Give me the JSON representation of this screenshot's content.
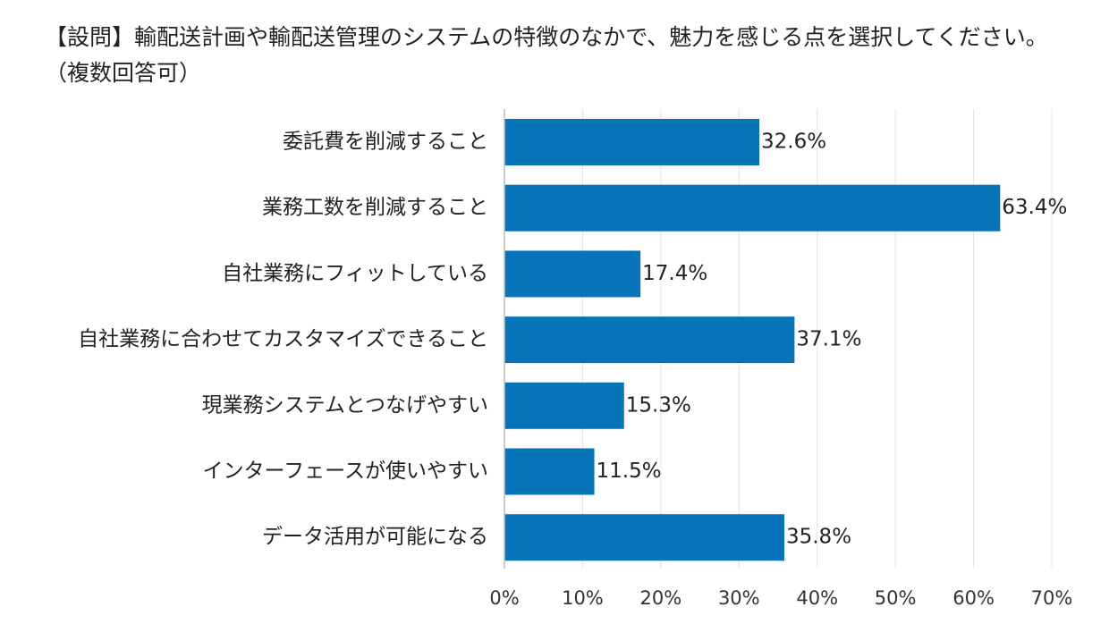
{
  "chart_data": {
    "type": "bar",
    "orientation": "horizontal",
    "title": "【設問】輸配送計画や輸配送管理のシステムの特徴のなかで、魅力を感じる点を選択してください。（複数回答可）",
    "categories": [
      "委託費を削減すること",
      "業務工数を削減すること",
      "自社業務にフィットしている",
      "自社業務に合わせてカスタマイズできること",
      "現業務システムとつなげやすい",
      "インターフェースが使いやすい",
      "データ活用が可能になる"
    ],
    "values": [
      32.6,
      63.4,
      17.4,
      37.1,
      15.3,
      11.5,
      35.8
    ],
    "value_labels": [
      "32.6%",
      "63.4%",
      "17.4%",
      "37.1%",
      "15.3%",
      "11.5%",
      "35.8%"
    ],
    "xlim": [
      0,
      70
    ],
    "xticks": [
      0,
      10,
      20,
      30,
      40,
      50,
      60,
      70
    ],
    "xtick_labels": [
      "0%",
      "10%",
      "20%",
      "30%",
      "40%",
      "50%",
      "60%",
      "70%"
    ],
    "xlabel": "",
    "ylabel": "",
    "grid": true,
    "legend": "none",
    "colors": {
      "bar": "#0774BA",
      "grid": "#E3E3E3",
      "axis": "#BBBBBB",
      "text": "#222222"
    }
  }
}
